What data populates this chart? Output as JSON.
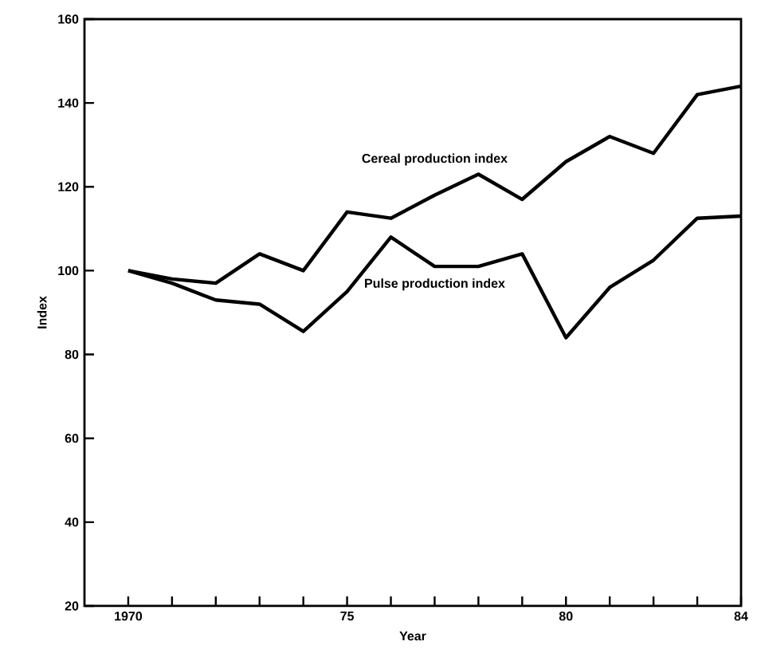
{
  "chart_data": {
    "type": "line",
    "xlabel": "Year",
    "ylabel": "Index",
    "x": [
      1970,
      1971,
      1972,
      1973,
      1974,
      1975,
      1976,
      1977,
      1978,
      1979,
      1980,
      1981,
      1982,
      1983,
      1984
    ],
    "series": [
      {
        "name": "Cereal production index",
        "color": "#000000",
        "values": [
          100,
          98,
          97,
          104,
          100,
          114,
          112.5,
          118,
          123,
          117,
          126,
          132,
          128,
          142,
          144
        ]
      },
      {
        "name": "Pulse production index",
        "color": "#000000",
        "values": [
          100,
          97,
          93,
          92,
          85.5,
          95,
          108,
          101,
          101,
          104,
          84,
          96,
          102.5,
          112.5,
          113
        ]
      }
    ],
    "xlim": [
      1969,
      1984
    ],
    "xticks": [
      {
        "value": 1970,
        "label": "1970"
      },
      {
        "value": 1971,
        "label": null
      },
      {
        "value": 1972,
        "label": null
      },
      {
        "value": 1973,
        "label": null
      },
      {
        "value": 1974,
        "label": null
      },
      {
        "value": 1975,
        "label": "75"
      },
      {
        "value": 1976,
        "label": null
      },
      {
        "value": 1977,
        "label": null
      },
      {
        "value": 1978,
        "label": null
      },
      {
        "value": 1979,
        "label": null
      },
      {
        "value": 1980,
        "label": "80"
      },
      {
        "value": 1981,
        "label": null
      },
      {
        "value": 1982,
        "label": null
      },
      {
        "value": 1983,
        "label": null
      },
      {
        "value": 1984,
        "label": "84"
      }
    ],
    "ylim": [
      20,
      160
    ],
    "yticks": [
      20,
      40,
      60,
      80,
      100,
      120,
      140,
      160
    ],
    "grid": false,
    "marker": "none",
    "line_style": "solid"
  }
}
